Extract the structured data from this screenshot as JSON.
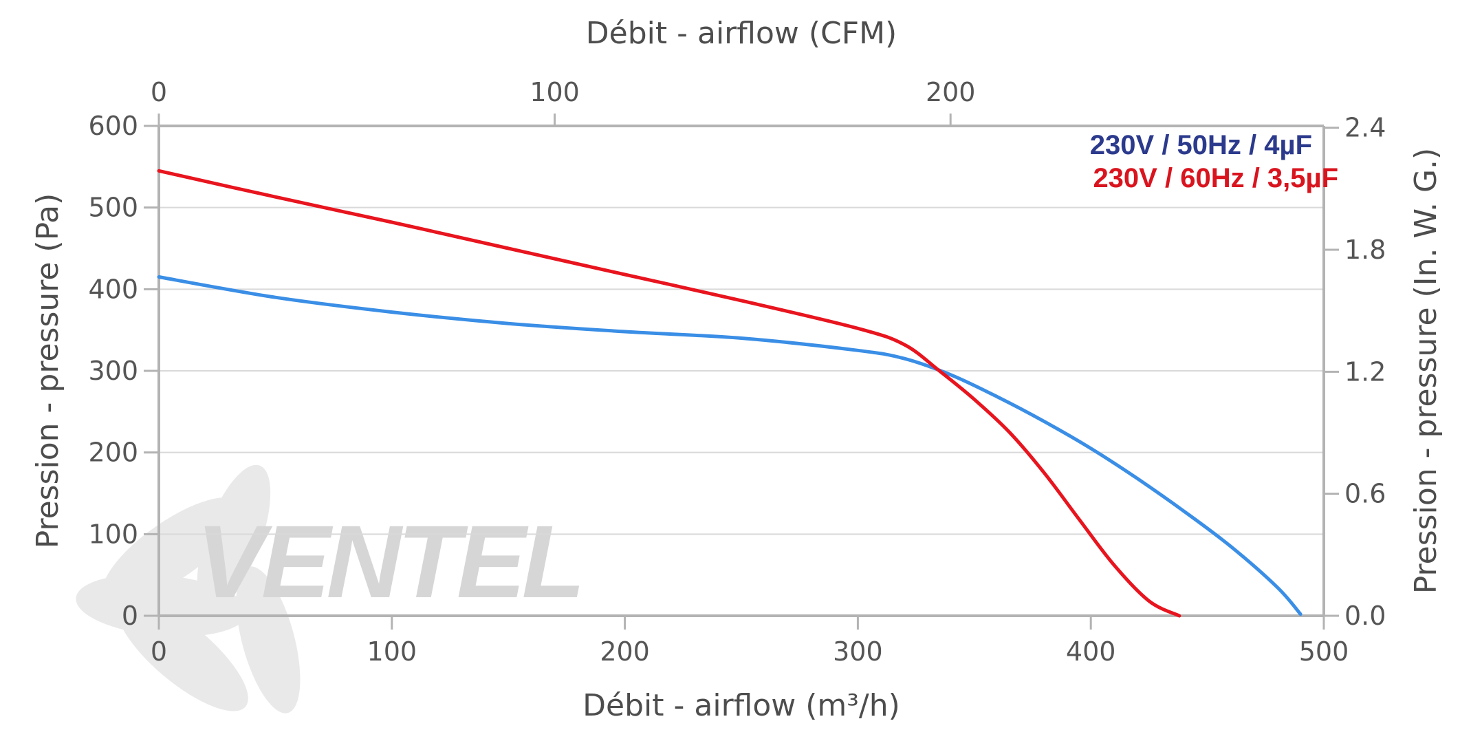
{
  "chart_data": {
    "type": "line",
    "title": "",
    "xlabel": "Débit - airflow (m³/h)",
    "x2label": "Débit - airflow (CFM)",
    "ylabel": "Pression - pressure (Pa)",
    "y2label": "Pression - pressure (In. W. G.)",
    "xlim": [
      0,
      500
    ],
    "ylim": [
      0,
      600
    ],
    "x2lim": [
      0,
      294.3
    ],
    "y2lim": [
      0,
      2.409
    ],
    "x_ticks": [
      "0",
      "100",
      "200",
      "300",
      "400",
      "500"
    ],
    "y_ticks": [
      "0",
      "100",
      "200",
      "300",
      "400",
      "500",
      "600"
    ],
    "x2_ticks": [
      "0",
      "100",
      "200"
    ],
    "y2_ticks": [
      "0.0",
      "0.6",
      "1.2",
      "1.8",
      "2.4"
    ],
    "grid": true,
    "legend_position": "top-right",
    "watermark": "VENTEL",
    "series": [
      {
        "name": "230V / 50Hz / 4µF",
        "color": "#3a8ee6",
        "label_color": "#2b3a8c",
        "x": [
          0,
          50,
          100,
          150,
          200,
          250,
          300,
          320,
          340,
          360,
          380,
          400,
          420,
          440,
          460,
          480,
          490
        ],
        "y": [
          415,
          390,
          372,
          358,
          348,
          340,
          325,
          315,
          295,
          268,
          238,
          205,
          168,
          128,
          85,
          35,
          2
        ]
      },
      {
        "name": "230V / 60Hz / 3,5µF",
        "color": "#e8141e",
        "label_color": "#d9141e",
        "x": [
          0,
          50,
          100,
          150,
          200,
          250,
          300,
          320,
          335,
          350,
          365,
          380,
          395,
          410,
          425,
          438
        ],
        "y": [
          545,
          513,
          482,
          450,
          418,
          386,
          352,
          332,
          300,
          265,
          225,
          175,
          118,
          62,
          18,
          0
        ]
      }
    ]
  }
}
